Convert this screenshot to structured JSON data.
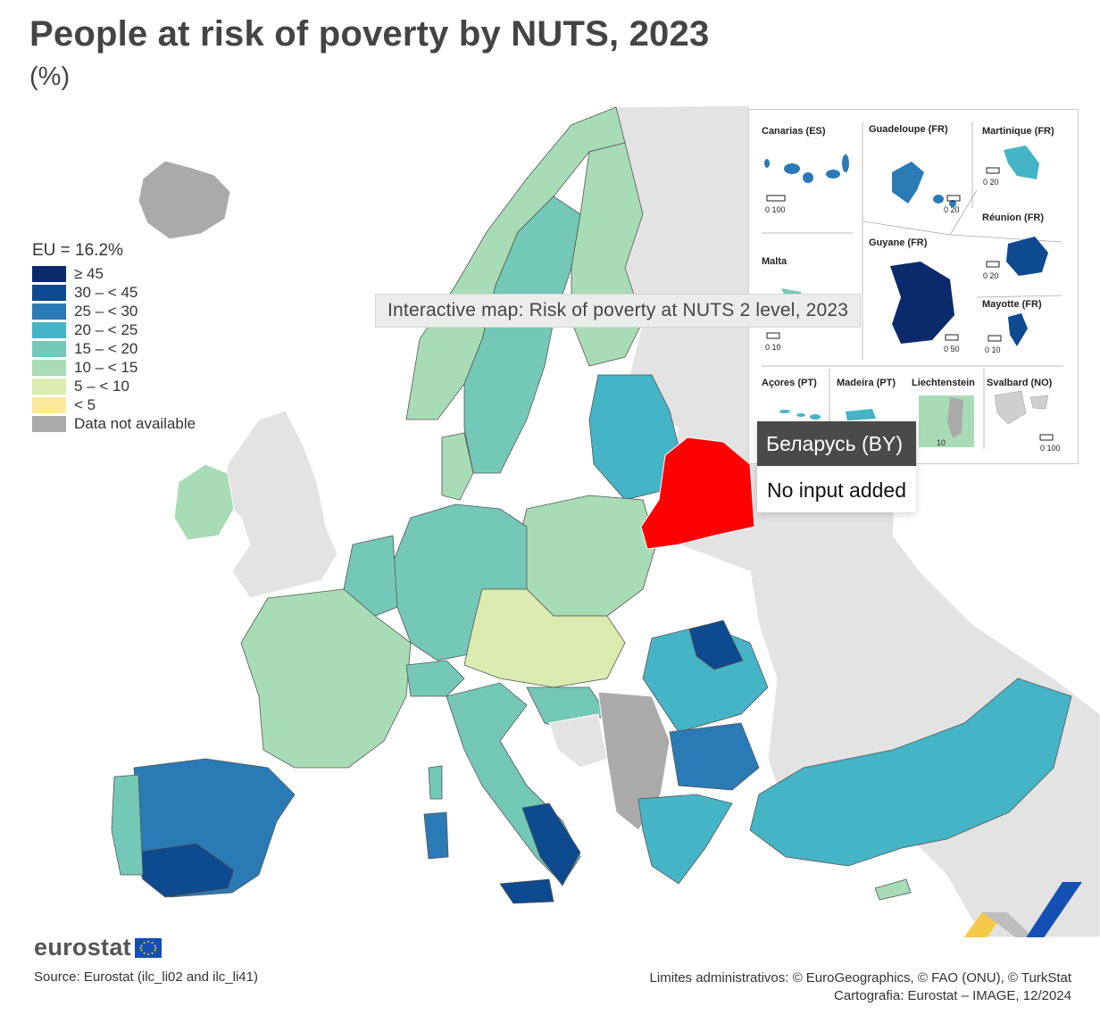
{
  "title": "People at risk of poverty by NUTS, 2023",
  "subtitle": "(%)",
  "legend": {
    "header": "EU = 16.2%",
    "items": [
      {
        "label": "≥ 45",
        "color": "#0b2a6b"
      },
      {
        "label": "30 – < 45",
        "color": "#0d4a8f"
      },
      {
        "label": "25 – < 30",
        "color": "#2a7ab5"
      },
      {
        "label": "20 – < 25",
        "color": "#45b4c6"
      },
      {
        "label": "15 – < 20",
        "color": "#74c8b7"
      },
      {
        "label": "10 – < 15",
        "color": "#a8dcb6"
      },
      {
        "label": "5 – < 10",
        "color": "#dcebb0"
      },
      {
        "label": "< 5",
        "color": "#fce99a"
      },
      {
        "label": "Data not available",
        "color": "#aaaaaa"
      }
    ]
  },
  "map_caption": "Interactive map: Risk of poverty at NUTS 2 level, 2023",
  "tooltip": {
    "region": "Беларусь (BY)",
    "value_text": "No input added",
    "highlight_color": "#ff0000"
  },
  "insets": {
    "canarias": "Canarias (ES)",
    "guadeloupe": "Guadeloupe (FR)",
    "martinique": "Martinique (FR)",
    "reunion": "Réunion (FR)",
    "guyane": "Guyane (FR)",
    "malta": "Malta",
    "mayotte": "Mayotte (FR)",
    "acores": "Açores (PT)",
    "madeira": "Madeira (PT)",
    "liechtenstein": "Liechtenstein",
    "svalbard": "Svalbard (NO)",
    "scales": {
      "canarias": "0   100",
      "guadeloupe": "0   20",
      "martinique": "0   20",
      "reunion": "0   20",
      "guyane": "0  50",
      "malta": "0   10",
      "mayotte": "0   10",
      "liechtenstein": "10",
      "svalbard": "0 100"
    }
  },
  "branding": {
    "name": "eurostat"
  },
  "source": "Source: Eurostat (ilc_li02 and ilc_li41)",
  "credits": {
    "line1": "Limites administrativos: © EuroGeographics, © FAO (ONU), © TurkStat",
    "line2": "Cartografia: Eurostat – IMAGE, 12/2024"
  }
}
